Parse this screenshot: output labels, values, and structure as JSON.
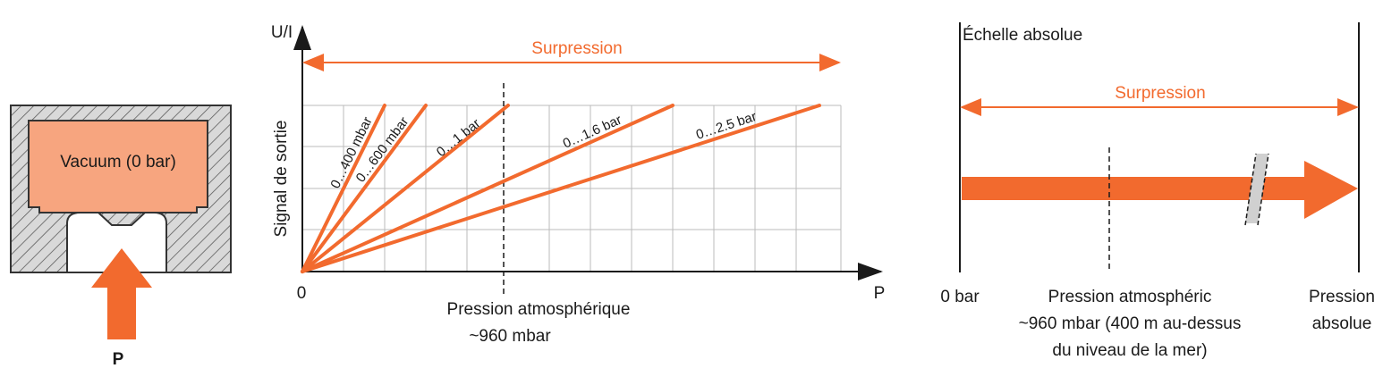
{
  "sensor": {
    "label": "Vacuum (0 bar)",
    "pressure_label": "P"
  },
  "signal_chart": {
    "y_axis_label": "U/I",
    "y_title": "Signal de sortie",
    "x_axis_label": "P",
    "origin": "0",
    "range_label": "Surpression",
    "lines": [
      {
        "label": "0…400 mbar"
      },
      {
        "label": "0…600 mbar"
      },
      {
        "label": "0…1 bar"
      },
      {
        "label": "0…1.6 bar"
      },
      {
        "label": "0…2.5 bar"
      }
    ],
    "reference": "Pression atmosphérique",
    "reference_value": "~960 mbar"
  },
  "absolute_scale": {
    "title": "Échelle absolue",
    "range_label": "Surpression",
    "start": "0 bar",
    "reference_lines": [
      "Pression atmosphéric",
      "~960 mbar (400 m au-dessus",
      "du niveau de la mer)"
    ],
    "end_lines": [
      "Pression",
      "absolue"
    ]
  }
}
